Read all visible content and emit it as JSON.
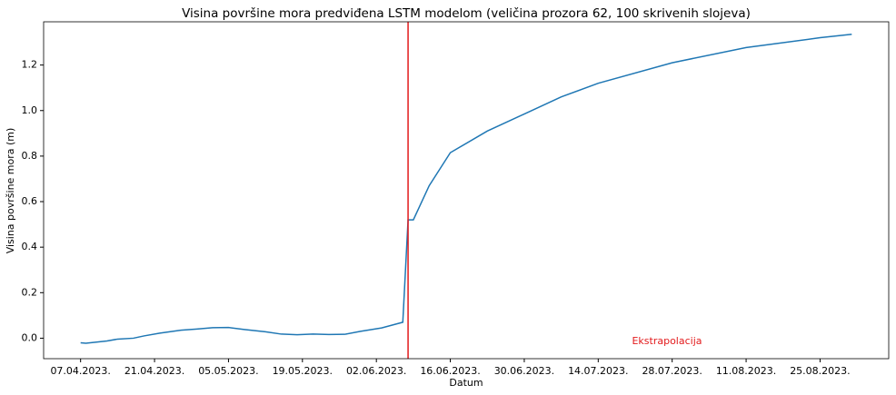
{
  "chart_data": {
    "type": "line",
    "title": "Visina površine mora predviđena LSTM modelom (veličina prozora 62, 100 skrivenih slojeva)",
    "xlabel": "Datum",
    "ylabel": "Visina površine mora (m)",
    "x": [
      "2023-04-07",
      "2023-04-08",
      "2023-04-12",
      "2023-04-14",
      "2023-04-17",
      "2023-04-19",
      "2023-04-22",
      "2023-04-26",
      "2023-04-29",
      "2023-05-02",
      "2023-05-05",
      "2023-05-08",
      "2023-05-12",
      "2023-05-15",
      "2023-05-18",
      "2023-05-21",
      "2023-05-24",
      "2023-05-27",
      "2023-05-30",
      "2023-06-03",
      "2023-06-07",
      "2023-06-08",
      "2023-06-09",
      "2023-06-10",
      "2023-06-12",
      "2023-06-16",
      "2023-06-23",
      "2023-06-30",
      "2023-07-07",
      "2023-07-14",
      "2023-07-28",
      "2023-08-11",
      "2023-08-25",
      "2023-08-31"
    ],
    "series": [
      {
        "color": "#1f77b4",
        "values": [
          -0.02,
          -0.022,
          -0.012,
          -0.004,
          0.0,
          0.01,
          0.022,
          0.035,
          0.04,
          0.046,
          0.047,
          0.038,
          0.028,
          0.018,
          0.015,
          0.018,
          0.016,
          0.017,
          0.03,
          0.045,
          0.07,
          0.52,
          0.52,
          0.57,
          0.67,
          0.815,
          0.91,
          0.985,
          1.06,
          1.12,
          1.21,
          1.277,
          1.32,
          1.335
        ]
      }
    ],
    "vline": {
      "x": "2023-06-08",
      "color": "#e31a1c"
    },
    "annotation": {
      "text": "Ekstrapolacija",
      "color": "#e31a1c"
    },
    "xlim": [
      "2023-03-31",
      "2023-09-07"
    ],
    "xticks": [
      {
        "value": "2023-04-07",
        "label": "07.04.2023."
      },
      {
        "value": "2023-04-21",
        "label": "21.04.2023."
      },
      {
        "value": "2023-05-05",
        "label": "05.05.2023."
      },
      {
        "value": "2023-05-19",
        "label": "19.05.2023."
      },
      {
        "value": "2023-06-02",
        "label": "02.06.2023."
      },
      {
        "value": "2023-06-16",
        "label": "16.06.2023."
      },
      {
        "value": "2023-06-30",
        "label": "30.06.2023."
      },
      {
        "value": "2023-07-14",
        "label": "14.07.2023."
      },
      {
        "value": "2023-07-28",
        "label": "28.07.2023."
      },
      {
        "value": "2023-08-11",
        "label": "11.08.2023."
      },
      {
        "value": "2023-08-25",
        "label": "25.08.2023."
      }
    ],
    "ylim": [
      -0.09,
      1.39
    ],
    "yticks": [
      {
        "value": 0,
        "label": "0.0"
      },
      {
        "value": 0.2,
        "label": "0.2"
      },
      {
        "value": 0.4,
        "label": "0.4"
      },
      {
        "value": 0.6,
        "label": "0.6"
      },
      {
        "value": 0.8,
        "label": "0.8"
      },
      {
        "value": 1.0,
        "label": "1.0"
      },
      {
        "value": 1.2,
        "label": "1.2"
      }
    ]
  }
}
